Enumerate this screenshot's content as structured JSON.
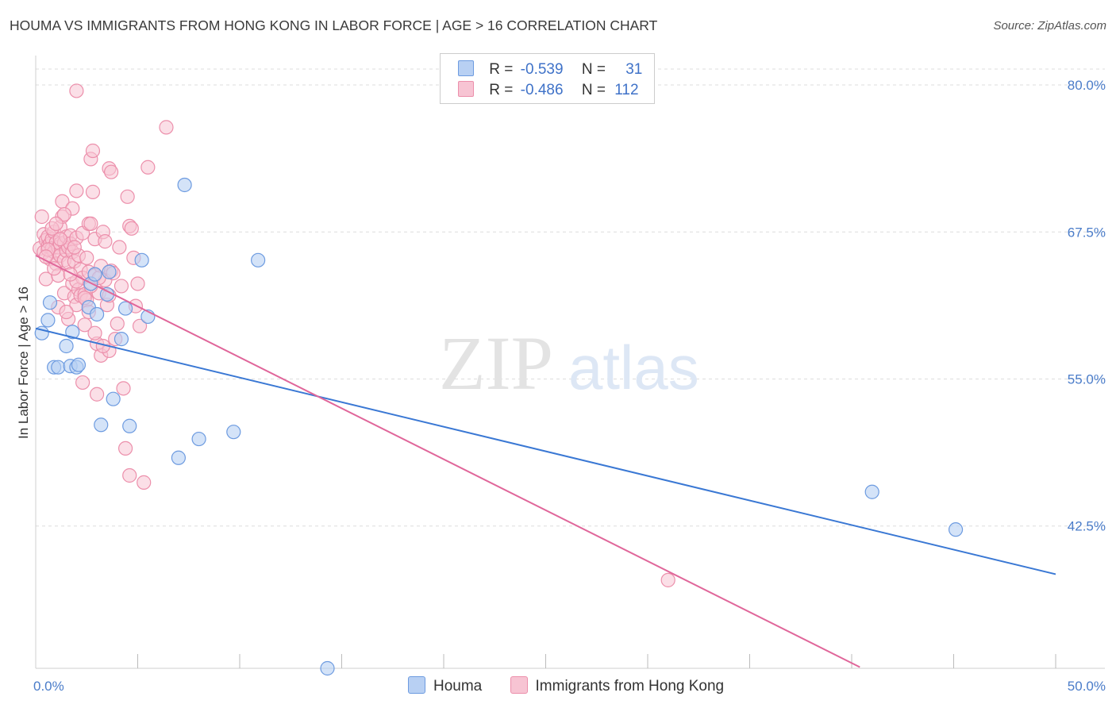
{
  "title": "HOUMA VS IMMIGRANTS FROM HONG KONG IN LABOR FORCE | AGE > 16 CORRELATION CHART",
  "source": "Source: ZipAtlas.com",
  "watermark": {
    "zip": "ZIP",
    "atlas": "atlas"
  },
  "colors": {
    "houma_fill": "#b8d0f3",
    "houma_stroke": "#6d9be0",
    "houma_line": "#3a78d4",
    "hk_fill": "#f7c4d3",
    "hk_stroke": "#ec8fab",
    "hk_line": "#e0669a",
    "grid": "#dedede",
    "tick_text": "#4a7cc9"
  },
  "legend": {
    "houma": {
      "r_label": "R =",
      "r_value": "-0.539",
      "n_label": "N =",
      "n_value": "31"
    },
    "hk": {
      "r_label": "R =",
      "r_value": "-0.486",
      "n_label": "N =",
      "n_value": "112"
    }
  },
  "bottom_legend": {
    "houma": "Houma",
    "hk": "Immigrants from Hong Kong"
  },
  "chart_data": {
    "type": "scatter",
    "ylabel": "In Labor Force | Age > 16",
    "xlim": [
      0,
      50
    ],
    "ylim": [
      30.4,
      82.5
    ],
    "x_tick_labels": [
      {
        "value": 0,
        "label": "0.0%"
      },
      {
        "value": 50,
        "label": "50.0%"
      }
    ],
    "y_tick_labels": [
      {
        "value": 80,
        "label": "80.0%"
      },
      {
        "value": 67.5,
        "label": "67.5%"
      },
      {
        "value": 55,
        "label": "55.0%"
      },
      {
        "value": 42.5,
        "label": "42.5%"
      }
    ],
    "series": [
      {
        "name": "Houma",
        "points": [
          [
            0.3,
            58.9
          ],
          [
            0.6,
            60.0
          ],
          [
            0.7,
            61.5
          ],
          [
            0.9,
            56.0
          ],
          [
            1.1,
            56.0
          ],
          [
            1.5,
            57.8
          ],
          [
            1.7,
            56.1
          ],
          [
            1.8,
            59.0
          ],
          [
            2.0,
            56.0
          ],
          [
            2.1,
            56.2
          ],
          [
            2.6,
            61.1
          ],
          [
            2.7,
            63.1
          ],
          [
            3.0,
            60.5
          ],
          [
            3.2,
            51.1
          ],
          [
            3.5,
            62.2
          ],
          [
            3.8,
            53.3
          ],
          [
            4.2,
            58.4
          ],
          [
            4.4,
            61.0
          ],
          [
            4.6,
            51.0
          ],
          [
            5.2,
            65.1
          ],
          [
            5.5,
            60.3
          ],
          [
            7.0,
            48.3
          ],
          [
            7.3,
            71.5
          ],
          [
            8.0,
            49.9
          ],
          [
            9.7,
            50.5
          ],
          [
            10.9,
            65.1
          ],
          [
            14.3,
            30.4
          ],
          [
            41.0,
            45.4
          ],
          [
            45.1,
            42.2
          ],
          [
            2.9,
            63.9
          ],
          [
            3.6,
            64.1
          ]
        ],
        "trend": [
          [
            0.0,
            59.3
          ],
          [
            50.0,
            38.4
          ]
        ]
      },
      {
        "name": "Immigrants from Hong Kong",
        "points": [
          [
            0.2,
            66.1
          ],
          [
            0.3,
            68.8
          ],
          [
            0.4,
            67.3
          ],
          [
            0.4,
            65.8
          ],
          [
            0.5,
            66.8
          ],
          [
            0.5,
            63.5
          ],
          [
            0.6,
            66.3
          ],
          [
            0.6,
            67.1
          ],
          [
            0.7,
            66.5
          ],
          [
            0.7,
            65.2
          ],
          [
            0.8,
            66.9
          ],
          [
            0.8,
            66.1
          ],
          [
            0.9,
            67.5
          ],
          [
            0.9,
            65.8
          ],
          [
            1.0,
            66.6
          ],
          [
            1.0,
            64.8
          ],
          [
            1.1,
            66.2
          ],
          [
            1.1,
            63.8
          ],
          [
            1.2,
            66.5
          ],
          [
            1.2,
            67.9
          ],
          [
            1.2,
            65.5
          ],
          [
            1.3,
            70.1
          ],
          [
            1.3,
            68.8
          ],
          [
            1.4,
            66.6
          ],
          [
            1.4,
            65.1
          ],
          [
            1.4,
            62.3
          ],
          [
            1.5,
            67.1
          ],
          [
            1.5,
            65.9
          ],
          [
            1.6,
            66.2
          ],
          [
            1.6,
            64.9
          ],
          [
            1.6,
            60.1
          ],
          [
            1.7,
            67.2
          ],
          [
            1.7,
            66.5
          ],
          [
            1.8,
            69.5
          ],
          [
            1.8,
            65.8
          ],
          [
            1.8,
            63.1
          ],
          [
            1.9,
            65.0
          ],
          [
            1.9,
            62.0
          ],
          [
            2.0,
            71.0
          ],
          [
            2.0,
            67.0
          ],
          [
            2.0,
            61.3
          ],
          [
            2.1,
            65.5
          ],
          [
            2.1,
            62.6
          ],
          [
            2.2,
            64.3
          ],
          [
            2.2,
            62.1
          ],
          [
            2.3,
            67.4
          ],
          [
            2.3,
            63.6
          ],
          [
            2.3,
            54.7
          ],
          [
            2.4,
            62.2
          ],
          [
            2.5,
            61.7
          ],
          [
            2.6,
            68.2
          ],
          [
            2.6,
            64.1
          ],
          [
            2.6,
            60.7
          ],
          [
            2.7,
            73.7
          ],
          [
            2.7,
            68.2
          ],
          [
            2.8,
            74.4
          ],
          [
            2.8,
            70.9
          ],
          [
            2.9,
            66.9
          ],
          [
            2.9,
            63.8
          ],
          [
            3.0,
            58.0
          ],
          [
            3.0,
            53.7
          ],
          [
            3.1,
            62.3
          ],
          [
            3.2,
            64.6
          ],
          [
            3.2,
            57.0
          ],
          [
            3.3,
            67.5
          ],
          [
            3.4,
            66.7
          ],
          [
            3.4,
            63.4
          ],
          [
            3.5,
            61.3
          ],
          [
            3.6,
            72.9
          ],
          [
            3.6,
            62.1
          ],
          [
            3.7,
            72.6
          ],
          [
            3.7,
            64.2
          ],
          [
            3.8,
            64.0
          ],
          [
            3.9,
            58.4
          ],
          [
            4.0,
            59.7
          ],
          [
            4.1,
            66.2
          ],
          [
            4.2,
            62.9
          ],
          [
            4.3,
            54.2
          ],
          [
            4.4,
            49.1
          ],
          [
            4.5,
            70.5
          ],
          [
            4.6,
            68.0
          ],
          [
            4.7,
            67.8
          ],
          [
            4.8,
            65.3
          ],
          [
            4.9,
            61.2
          ],
          [
            5.0,
            63.1
          ],
          [
            5.1,
            59.5
          ],
          [
            5.3,
            46.2
          ],
          [
            5.5,
            73.0
          ],
          [
            6.4,
            76.4
          ],
          [
            2.0,
            79.5
          ],
          [
            2.4,
            59.6
          ],
          [
            2.9,
            58.9
          ],
          [
            3.6,
            57.4
          ],
          [
            4.6,
            46.8
          ],
          [
            1.1,
            61.1
          ],
          [
            0.9,
            64.4
          ],
          [
            1.5,
            60.7
          ],
          [
            2.5,
            65.3
          ],
          [
            2.0,
            63.3
          ],
          [
            1.2,
            66.9
          ],
          [
            0.8,
            67.8
          ],
          [
            1.9,
            66.2
          ],
          [
            1.4,
            69.0
          ],
          [
            31.0,
            37.9
          ],
          [
            3.3,
            57.8
          ],
          [
            2.4,
            61.9
          ],
          [
            1.7,
            63.9
          ],
          [
            0.6,
            66.0
          ],
          [
            1.0,
            68.2
          ],
          [
            0.5,
            65.4
          ],
          [
            2.7,
            62.9
          ],
          [
            3.1,
            63.6
          ]
        ],
        "trend": [
          [
            0.0,
            65.5
          ],
          [
            40.4,
            30.5
          ]
        ]
      }
    ]
  }
}
